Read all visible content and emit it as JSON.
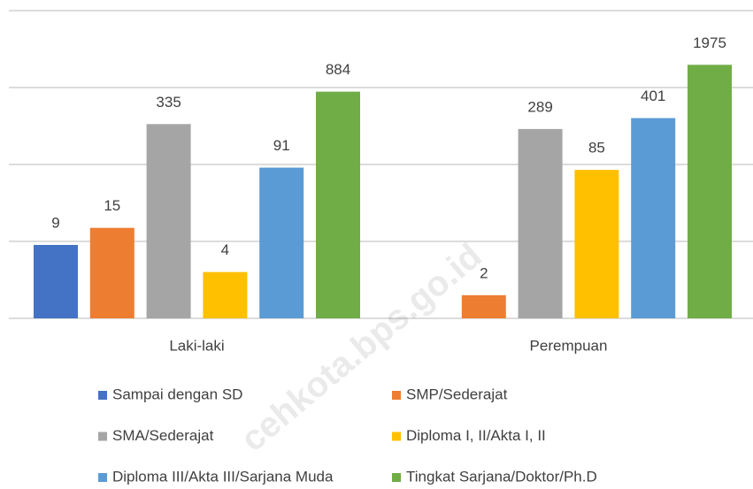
{
  "chart_data": {
    "type": "bar",
    "categories": [
      "Laki-laki",
      "Perempuan"
    ],
    "series": [
      {
        "name": "Sampai dengan SD",
        "color": "#4472c4",
        "values": [
          9,
          null
        ]
      },
      {
        "name": "SMP/Sederajat",
        "color": "#ed7d31",
        "values": [
          15,
          2
        ]
      },
      {
        "name": "SMA/Sederajat",
        "color": "#a5a5a5",
        "values": [
          335,
          289
        ]
      },
      {
        "name": "Diploma I, II/Akta I, II",
        "color": "#ffc000",
        "values": [
          4,
          85
        ]
      },
      {
        "name": "Diploma III/Akta III/Sarjana Muda",
        "color": "#5b9bd5",
        "values": [
          91,
          401
        ]
      },
      {
        "name": "Tingkat Sarjana/Doktor/Ph.D",
        "color": "#70ad47",
        "values": [
          884,
          1975
        ]
      }
    ],
    "log_scale": true,
    "ylim": [
      1,
      10000
    ],
    "yticks": [
      1,
      10,
      100,
      1000,
      10000
    ],
    "grid": true,
    "legend": "bottom",
    "watermark": "cehkota.bps.go.id"
  }
}
